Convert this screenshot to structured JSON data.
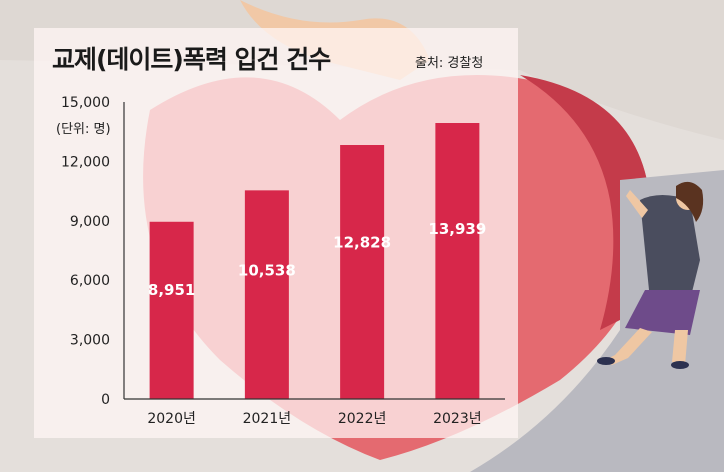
{
  "title": "교제(데이트)폭력 입건 건수",
  "source": "출처: 경찰청",
  "colors": {
    "bar": "#d7274a",
    "axis": "#333333",
    "text": "#222222"
  },
  "chart_data": {
    "type": "bar",
    "title": "교제(데이트)폭력 입건 건수",
    "unit_label": "(단위: 명)",
    "categories": [
      "2020년",
      "2021년",
      "2022년",
      "2023년"
    ],
    "values": [
      8951,
      10538,
      12828,
      13939
    ],
    "data_labels": [
      "8,951",
      "10,538",
      "12,828",
      "13,939"
    ],
    "yticks": [
      0,
      3000,
      6000,
      9000,
      12000,
      15000
    ],
    "ytick_labels": [
      "0",
      "3,000",
      "6,000",
      "9,000",
      "12,000",
      "15,000"
    ],
    "ylim": [
      0,
      15000
    ],
    "xlabel": "",
    "ylabel": "",
    "grid": false,
    "legend": "none"
  }
}
